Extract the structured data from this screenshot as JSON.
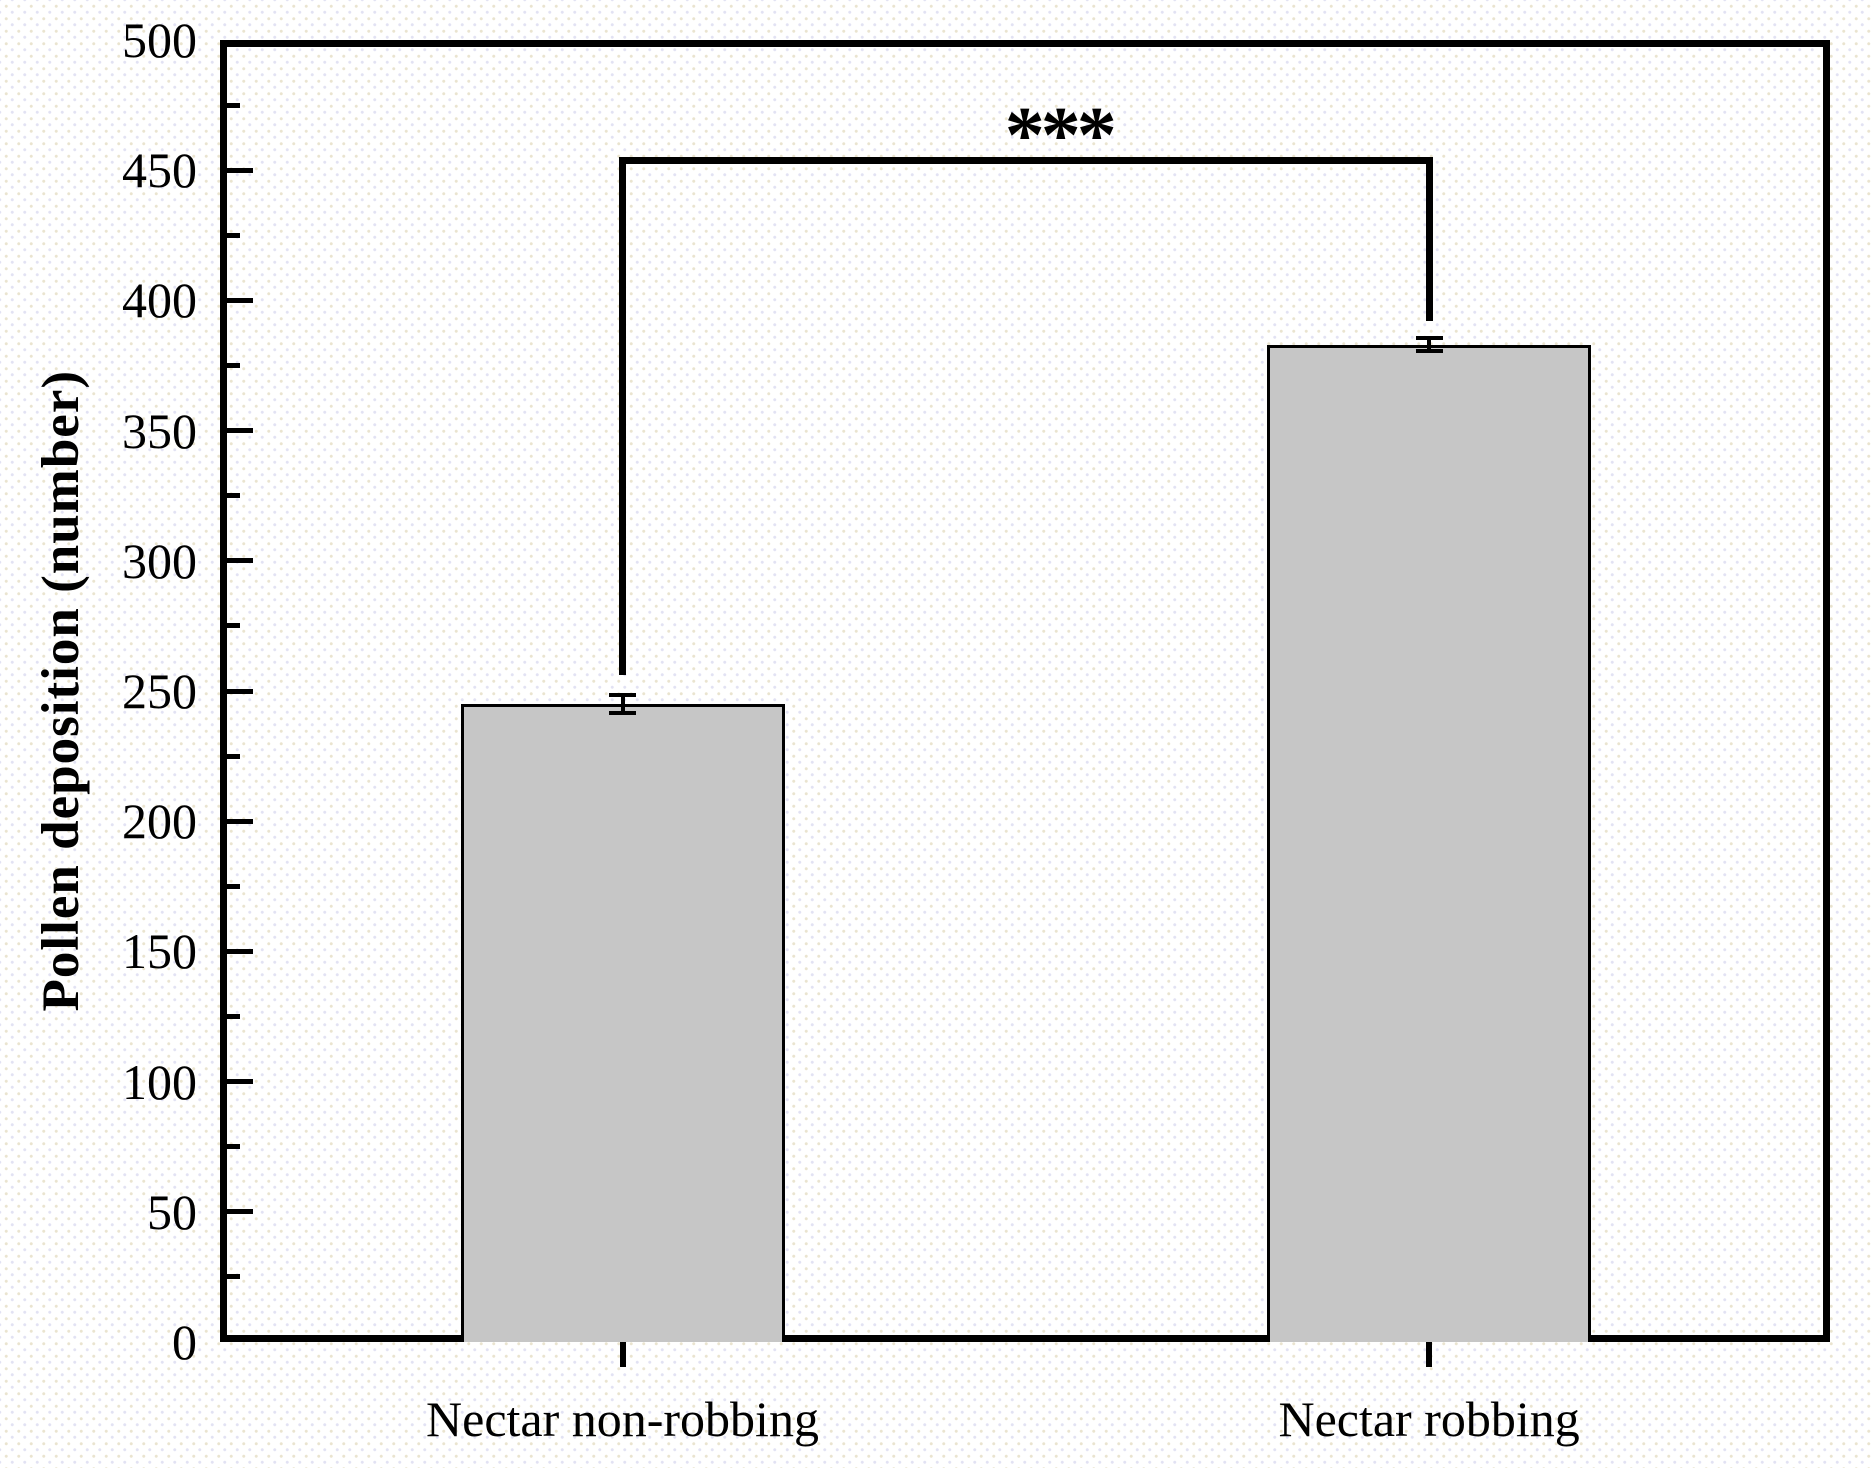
{
  "chart_data": {
    "type": "bar",
    "title": "",
    "xlabel": "",
    "ylabel": "Pollen deposition (number)",
    "categories": [
      "Nectar non-robbing",
      "Nectar robbing"
    ],
    "values": [
      245,
      383
    ],
    "errors": [
      3.5,
      2.5
    ],
    "ylim": [
      0,
      500
    ],
    "y_major_step": 50,
    "y_minor_step": 25,
    "y_tick_labels": [
      "0",
      "50",
      "100",
      "150",
      "200",
      "250",
      "300",
      "350",
      "400",
      "450",
      "500"
    ],
    "grid": "off",
    "legend": "none",
    "bar_fill_color": "#c6c6c6",
    "bar_edge_color": "#000000",
    "axis_color": "#000000",
    "significance": {
      "label": "***",
      "bracket_y_value": 455,
      "left_drop_to_value": 256,
      "right_drop_to_value": 392
    }
  }
}
